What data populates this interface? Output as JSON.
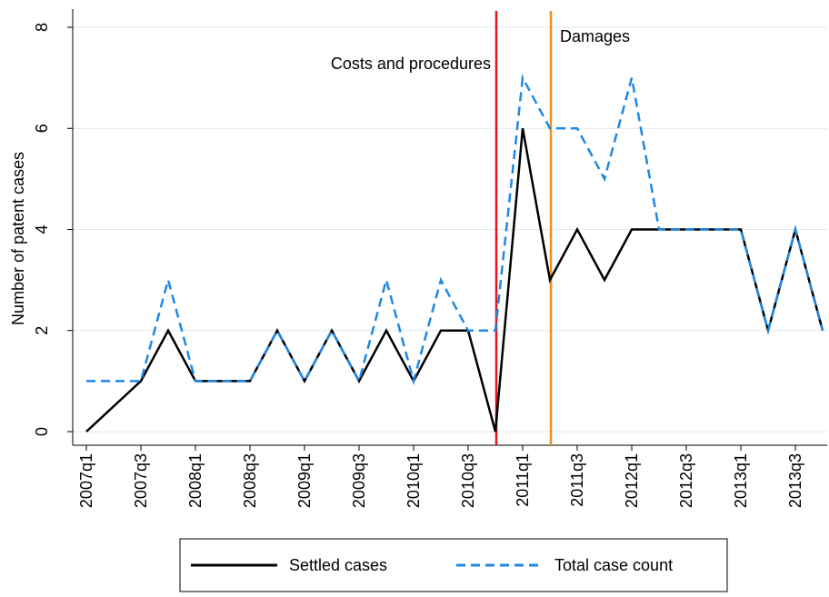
{
  "chart_data": {
    "type": "line",
    "y_label": "Number of patent cases",
    "categories": [
      "2007q1",
      null,
      "2007q3",
      null,
      "2008q1",
      null,
      "2008q3",
      null,
      "2009q1",
      null,
      "2009q3",
      null,
      "2010q1",
      null,
      "2010q3",
      null,
      "2011q1",
      null,
      "2011q3",
      null,
      "2012q1",
      null,
      "2012q3",
      null,
      "2013q1",
      null,
      "2013q3",
      null
    ],
    "series": [
      {
        "name": "Settled cases",
        "color": "#000000",
        "dash": "solid",
        "values": [
          0,
          0.5,
          1,
          2,
          1,
          1,
          1,
          2,
          1,
          2,
          1,
          2,
          1,
          2,
          2,
          0,
          6,
          3,
          4,
          3,
          4,
          4,
          4,
          4,
          4,
          2,
          4,
          2
        ]
      },
      {
        "name": "Total case count",
        "color": "#1e88e5",
        "dash": "dashed",
        "values": [
          1,
          1,
          1,
          3,
          1,
          1,
          1,
          2,
          1,
          2,
          1,
          3,
          1,
          3,
          2,
          2,
          7,
          6,
          6,
          5,
          7,
          4,
          4,
          4,
          4,
          2,
          4,
          2
        ]
      }
    ],
    "vlines": [
      {
        "label": "Costs and procedures",
        "category_index": 15,
        "color": "#e8141c"
      },
      {
        "label": "Damages",
        "category_index": 17,
        "color": "#f58b1f"
      }
    ],
    "ylim": [
      0,
      8
    ],
    "yticks": [
      0,
      2,
      4,
      6,
      8
    ],
    "grid": true,
    "legend": "bottom"
  }
}
